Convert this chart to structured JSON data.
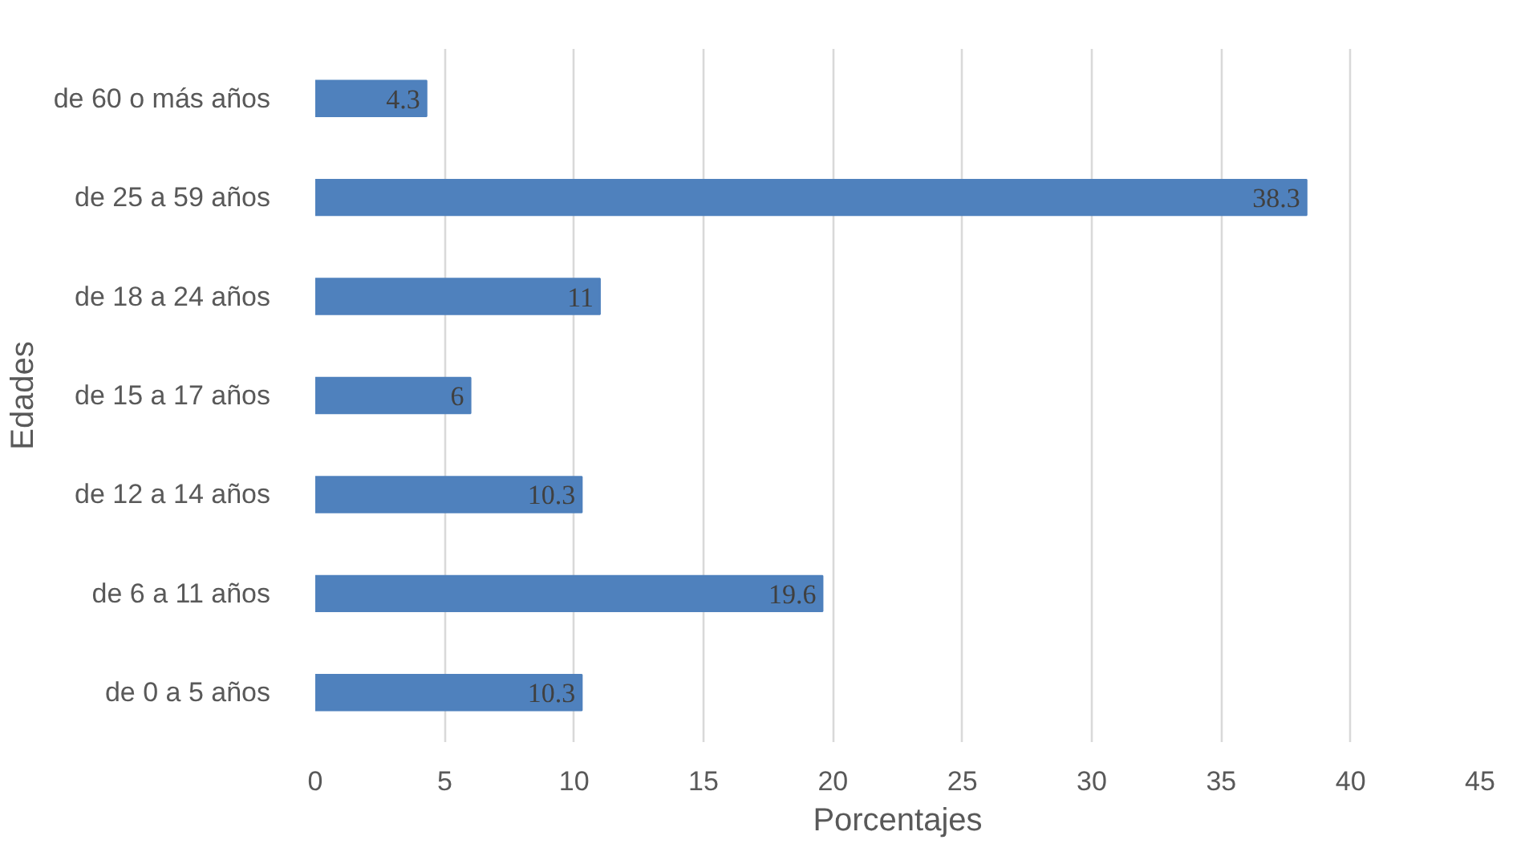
{
  "chart_data": {
    "type": "bar",
    "orientation": "horizontal",
    "xlabel": "Porcentajes",
    "ylabel": "Edades",
    "categories": [
      "de 60 o más años",
      "de 25 a 59 años",
      "de 18 a 24 años",
      "de 15 a 17 años",
      "de 12 a 14 años",
      "de 6 a 11 años",
      "de 0 a 5 años"
    ],
    "values": [
      4.3,
      38.3,
      11,
      6,
      10.3,
      19.6,
      10.3
    ],
    "color": "#4f81bd",
    "xlim": [
      0,
      45
    ],
    "xticks": [
      0,
      5,
      10,
      15,
      20,
      25,
      30,
      35,
      40,
      45
    ],
    "grid": "x",
    "data_labels": true
  }
}
